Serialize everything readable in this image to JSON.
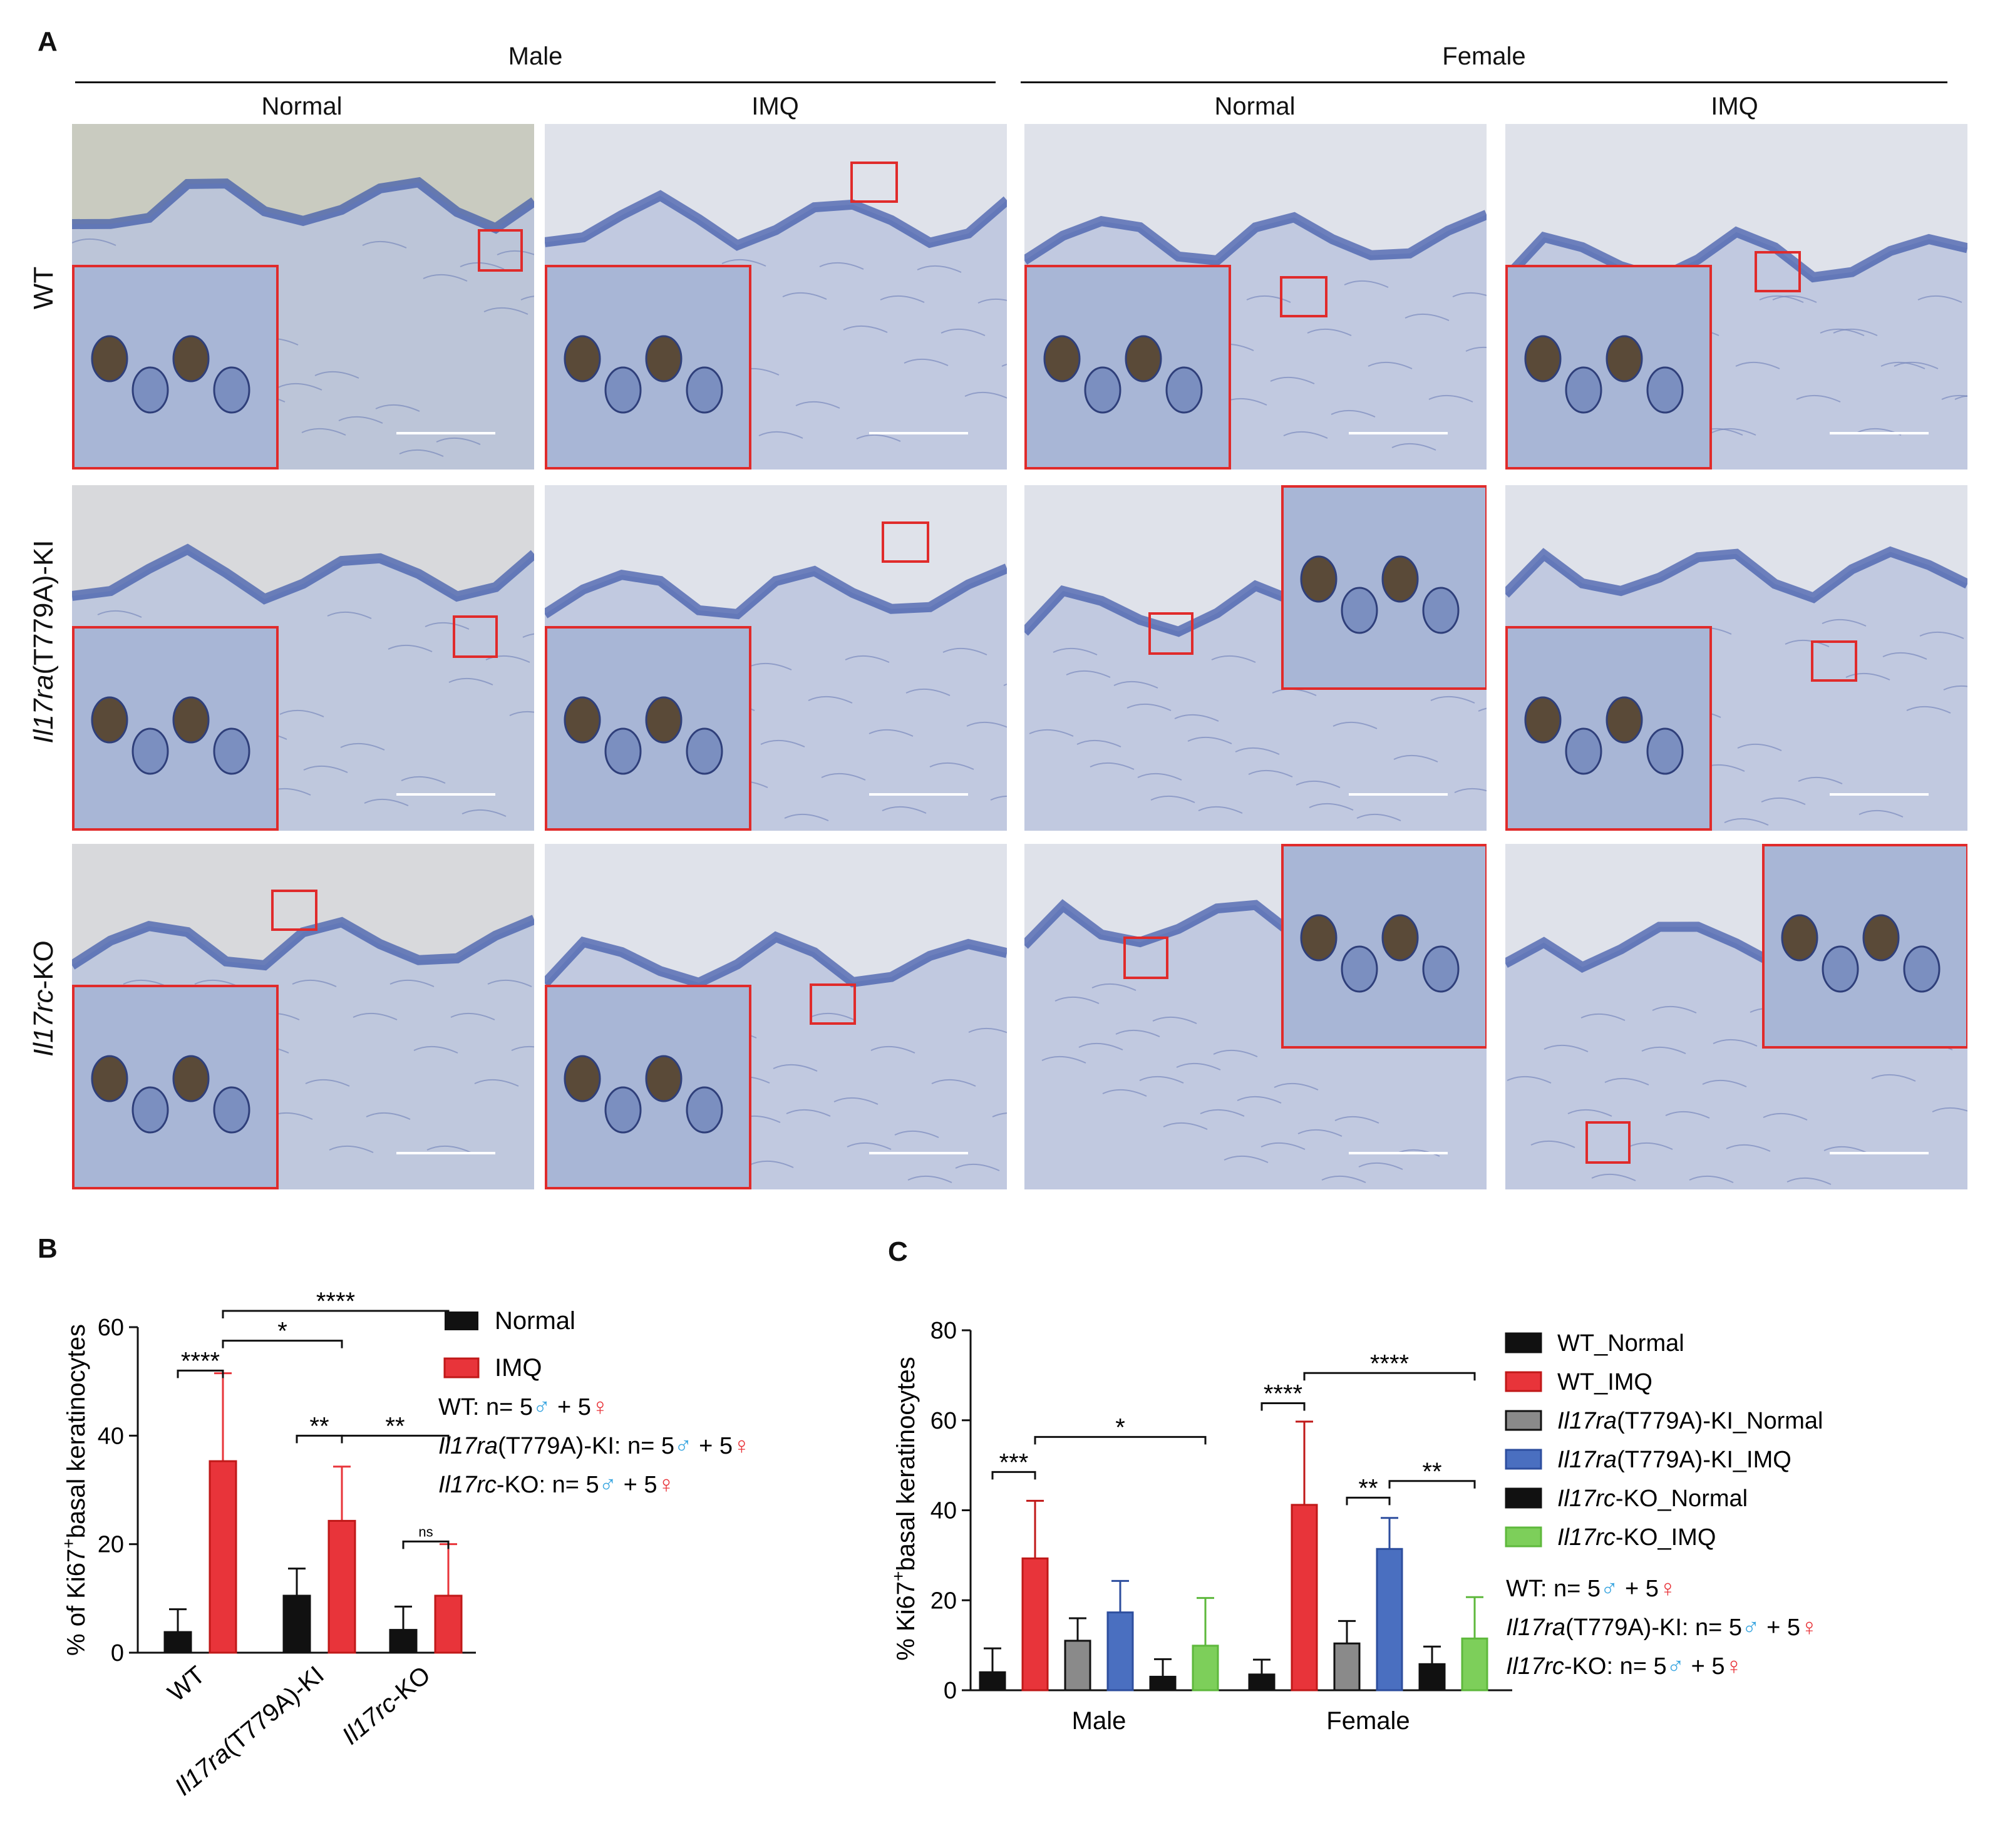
{
  "panelA": {
    "letter": "A",
    "sex_headers": [
      "Male",
      "Female"
    ],
    "condition_headers": [
      "Normal",
      "IMQ",
      "Normal",
      "IMQ"
    ],
    "row_labels": [
      {
        "italic": "",
        "plain": "WT"
      },
      {
        "italic": "Il17ra",
        "plain": "(T779A)-KI"
      },
      {
        "italic": "Il17rc",
        "plain": "-KO"
      }
    ]
  },
  "panelB": {
    "letter": "B",
    "legend": {
      "normal": "Normal",
      "imq": "IMQ",
      "n_lines": [
        {
          "italic": "",
          "prefix": "WT: n= 5",
          "mid": " + 5"
        },
        {
          "italic": "Il17ra",
          "prefix": "(T779A)-KI: n= 5",
          "mid": " + 5"
        },
        {
          "italic": "Il17rc",
          "prefix": "-KO: n= 5",
          "mid": " + 5"
        }
      ]
    }
  },
  "panelC": {
    "letter": "C"
  },
  "symbols": {
    "male": "♂",
    "female": "♀"
  },
  "colors": {
    "black": "#111111",
    "red": "#e8343a",
    "grey": "#8a8a8a",
    "blue": "#4a6fc0",
    "green": "#7dcf5a",
    "male_symbol": "#3aa6e0",
    "female_symbol": "#e8343a",
    "box": "#e02b2b"
  },
  "chart_data": [
    {
      "type": "bar",
      "panel": "B",
      "ylabel_prefix": "% of Ki67",
      "ylabel_sup": "+",
      "ylabel_suffix": "basal keratinocytes",
      "ylim": [
        0,
        60
      ],
      "yticks": [
        "0",
        "20",
        "40",
        "60"
      ],
      "categories": [
        {
          "italic": "",
          "plain": "WT"
        },
        {
          "italic": "Il17ra",
          "plain": "(T779A)-KI"
        },
        {
          "italic": "Il17rc",
          "plain": "-KO"
        }
      ],
      "series": [
        {
          "name": "Normal",
          "values": [
            3.8,
            10.5,
            4.2
          ],
          "errors": [
            4.2,
            5.0,
            4.3
          ]
        },
        {
          "name": "IMQ",
          "values": [
            35.3,
            24.3,
            10.5
          ],
          "errors": [
            16.2,
            10.0,
            9.5
          ]
        }
      ],
      "significance": [
        {
          "label": "****",
          "from": [
            0,
            0
          ],
          "to": [
            0,
            1
          ]
        },
        {
          "label": "*",
          "from": [
            0,
            1
          ],
          "to": [
            1,
            1
          ]
        },
        {
          "label": "****",
          "from": [
            0,
            1
          ],
          "to": [
            2,
            1
          ]
        },
        {
          "label": "**",
          "from": [
            1,
            0
          ],
          "to": [
            1,
            1
          ]
        },
        {
          "label": "**",
          "from": [
            1,
            1
          ],
          "to": [
            2,
            1
          ]
        },
        {
          "label": "ns",
          "from": [
            2,
            0
          ],
          "to": [
            2,
            1
          ]
        }
      ]
    },
    {
      "type": "bar",
      "panel": "C",
      "ylabel_prefix": "% Ki67",
      "ylabel_sup": "+",
      "ylabel_suffix": "basal keratinocytes",
      "ylim": [
        0,
        80
      ],
      "yticks": [
        "0",
        "20",
        "40",
        "60",
        "80"
      ],
      "categories": [
        "Male",
        "Female"
      ],
      "series": [
        {
          "name_italic": "",
          "name": "WT_Normal",
          "values": [
            4.0,
            3.5
          ],
          "errors": [
            5.3,
            3.3
          ]
        },
        {
          "name_italic": "",
          "name": "WT_IMQ",
          "values": [
            29.3,
            41.2
          ],
          "errors": [
            12.8,
            18.5
          ]
        },
        {
          "name_italic": "Il17ra",
          "name": "(T779A)-KI_Normal",
          "values": [
            11.0,
            10.4
          ],
          "errors": [
            5.0,
            5.0
          ]
        },
        {
          "name_italic": "Il17ra",
          "name": "(T779A)-KI_IMQ",
          "values": [
            17.3,
            31.4
          ],
          "errors": [
            7.0,
            6.9
          ]
        },
        {
          "name_italic": "Il17rc",
          "name": "-KO_Normal",
          "values": [
            3.0,
            5.8
          ],
          "errors": [
            3.9,
            3.9
          ]
        },
        {
          "name_italic": "Il17rc",
          "name": "-KO_IMQ",
          "values": [
            9.9,
            11.5
          ],
          "errors": [
            10.6,
            9.2
          ]
        }
      ],
      "significance": [
        {
          "label": "***",
          "from": [
            0,
            0
          ],
          "to": [
            0,
            1
          ]
        },
        {
          "label": "*",
          "from": [
            0,
            1
          ],
          "to": [
            0,
            5
          ]
        },
        {
          "label": "****",
          "from": [
            1,
            0
          ],
          "to": [
            1,
            1
          ]
        },
        {
          "label": "****",
          "from": [
            1,
            1
          ],
          "to": [
            1,
            5
          ]
        },
        {
          "label": "**",
          "from": [
            1,
            2
          ],
          "to": [
            1,
            3
          ]
        },
        {
          "label": "**",
          "from": [
            1,
            3
          ],
          "to": [
            1,
            5
          ]
        }
      ],
      "legend_n_lines": [
        {
          "italic": "",
          "prefix": "WT: n= 5",
          "mid": " + 5"
        },
        {
          "italic": "Il17ra",
          "prefix": "(T779A)-KI: n= 5",
          "mid": " + 5"
        },
        {
          "italic": "Il17rc",
          "prefix": "-KO: n= 5",
          "mid": " + 5"
        }
      ]
    }
  ]
}
